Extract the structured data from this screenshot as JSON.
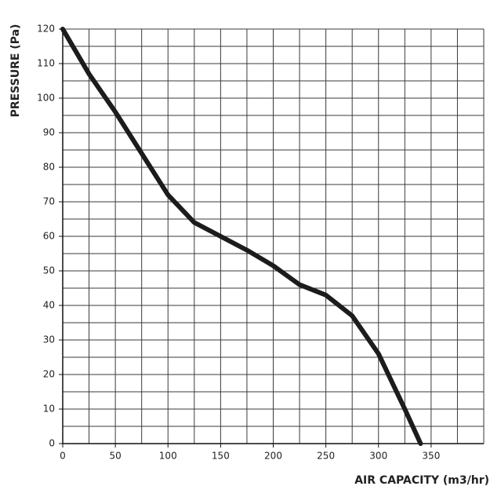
{
  "chart_data": {
    "type": "line",
    "y_label": "PRESSURE (Pa)",
    "x_label": "AIR CAPACITY (m3/hr)",
    "series": [
      {
        "color": "#1c1c1c",
        "x": [
          0,
          25,
          50,
          75,
          100,
          125,
          150,
          175,
          200,
          225,
          250,
          275,
          300,
          325,
          340
        ],
        "values": [
          120,
          107,
          96,
          84,
          72,
          64,
          60,
          56,
          51.5,
          46,
          43,
          37,
          26,
          10,
          0
        ]
      }
    ],
    "xlim": [
      0,
      400
    ],
    "ylim": [
      0,
      120
    ],
    "xticks": [
      0,
      50,
      100,
      150,
      200,
      250,
      300,
      350
    ],
    "yticks": [
      0,
      10,
      20,
      30,
      40,
      50,
      60,
      70,
      80,
      90,
      100,
      110,
      120
    ],
    "xgrid": [
      0,
      25,
      50,
      75,
      100,
      125,
      150,
      175,
      200,
      225,
      250,
      275,
      300,
      325,
      350,
      375,
      400
    ],
    "ygrid": [
      0,
      5,
      10,
      15,
      20,
      25,
      30,
      35,
      40,
      45,
      50,
      55,
      60,
      65,
      70,
      75,
      80,
      85,
      90,
      95,
      100,
      105,
      110,
      115,
      120
    ],
    "grid": true
  }
}
